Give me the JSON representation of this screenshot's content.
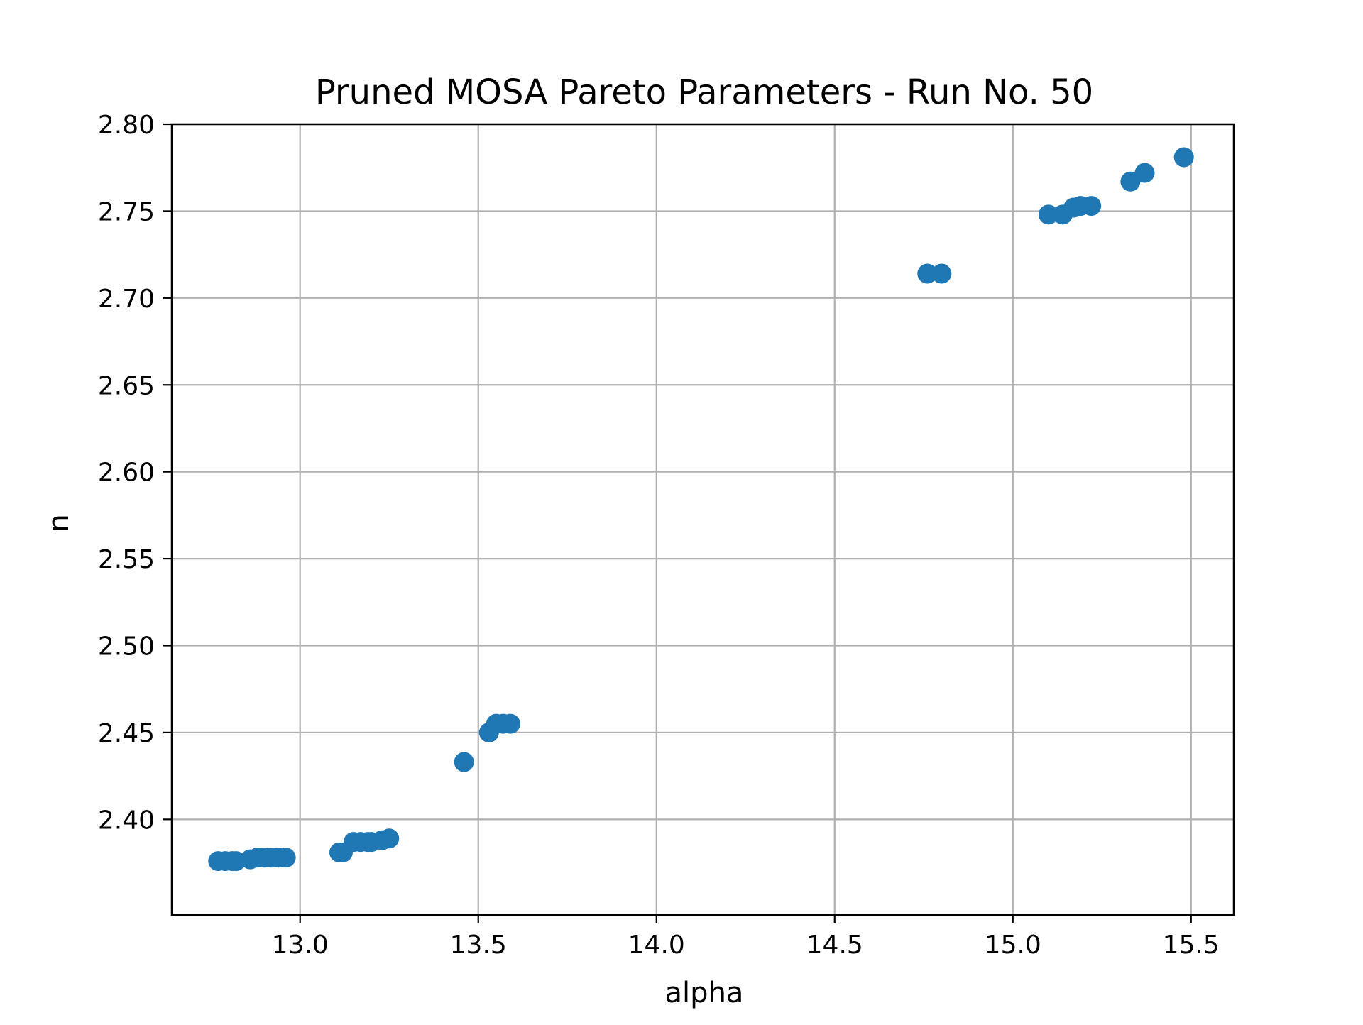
{
  "chart_data": {
    "type": "scatter",
    "title": "Pruned MOSA Pareto Parameters - Run No. 50",
    "xlabel": "alpha",
    "ylabel": "n",
    "xlim": [
      12.64,
      15.62
    ],
    "ylim": [
      2.345,
      2.8
    ],
    "grid": true,
    "legend": "none",
    "x_ticks": [
      13.0,
      13.5,
      14.0,
      14.5,
      15.0,
      15.5
    ],
    "x_tick_labels": [
      "13.0",
      "13.5",
      "14.0",
      "14.5",
      "15.0",
      "15.5"
    ],
    "y_ticks": [
      2.4,
      2.45,
      2.5,
      2.55,
      2.6,
      2.65,
      2.7,
      2.75,
      2.8
    ],
    "y_tick_labels": [
      "2.40",
      "2.45",
      "2.50",
      "2.55",
      "2.60",
      "2.65",
      "2.70",
      "2.75",
      "2.80"
    ],
    "colors": {
      "marker": "#1f77b4",
      "grid": "#b0b0b0",
      "axes": "#000000"
    },
    "series": [
      {
        "points": [
          {
            "x": 12.77,
            "y": 2.376
          },
          {
            "x": 12.79,
            "y": 2.376
          },
          {
            "x": 12.81,
            "y": 2.376
          },
          {
            "x": 12.82,
            "y": 2.376
          },
          {
            "x": 12.86,
            "y": 2.377
          },
          {
            "x": 12.88,
            "y": 2.378
          },
          {
            "x": 12.9,
            "y": 2.378
          },
          {
            "x": 12.92,
            "y": 2.378
          },
          {
            "x": 12.94,
            "y": 2.378
          },
          {
            "x": 12.96,
            "y": 2.378
          },
          {
            "x": 13.11,
            "y": 2.381
          },
          {
            "x": 13.12,
            "y": 2.381
          },
          {
            "x": 13.15,
            "y": 2.387
          },
          {
            "x": 13.17,
            "y": 2.387
          },
          {
            "x": 13.19,
            "y": 2.387
          },
          {
            "x": 13.2,
            "y": 2.387
          },
          {
            "x": 13.23,
            "y": 2.388
          },
          {
            "x": 13.25,
            "y": 2.389
          },
          {
            "x": 13.46,
            "y": 2.433
          },
          {
            "x": 13.53,
            "y": 2.45
          },
          {
            "x": 13.55,
            "y": 2.455
          },
          {
            "x": 13.57,
            "y": 2.455
          },
          {
            "x": 13.59,
            "y": 2.455
          },
          {
            "x": 14.76,
            "y": 2.714
          },
          {
            "x": 14.8,
            "y": 2.714
          },
          {
            "x": 15.1,
            "y": 2.748
          },
          {
            "x": 15.14,
            "y": 2.748
          },
          {
            "x": 15.17,
            "y": 2.752
          },
          {
            "x": 15.19,
            "y": 2.753
          },
          {
            "x": 15.22,
            "y": 2.753
          },
          {
            "x": 15.33,
            "y": 2.767
          },
          {
            "x": 15.37,
            "y": 2.772
          },
          {
            "x": 15.48,
            "y": 2.781
          }
        ]
      }
    ]
  }
}
